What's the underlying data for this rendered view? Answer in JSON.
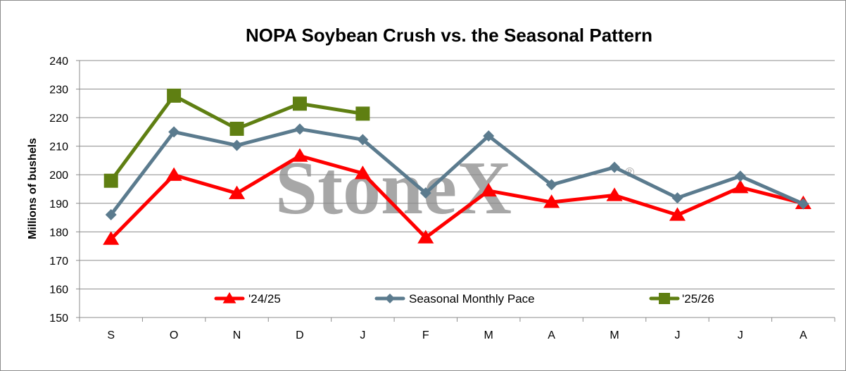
{
  "chart_data": {
    "type": "line",
    "title": "NOPA Soybean Crush vs. the Seasonal Pattern",
    "xlabel": "",
    "ylabel": "Millions of  bushels",
    "ylim": [
      150,
      240
    ],
    "ytick_step": 10,
    "categories": [
      "S",
      "O",
      "N",
      "D",
      "J",
      "F",
      "M",
      "A",
      "M",
      "J",
      "J",
      "A"
    ],
    "grid": "horizontal major gridlines",
    "legend_position": "bottom, inside plot area",
    "watermark": "StoneX",
    "watermark_mark": "®",
    "series": [
      {
        "name": "'24/25",
        "color": "#ff0000",
        "marker": "triangle",
        "values": [
          177.5,
          199.9,
          193.5,
          206.6,
          200.5,
          178.0,
          194.4,
          190.4,
          192.8,
          185.9,
          195.6,
          190.0
        ]
      },
      {
        "name": "Seasonal Monthly Pace",
        "color": "#5b7b8e",
        "marker": "diamond",
        "values": [
          186.0,
          215.0,
          210.3,
          216.0,
          212.3,
          193.6,
          213.6,
          196.5,
          202.6,
          191.9,
          199.5,
          189.8
        ]
      },
      {
        "name": "'25/26",
        "color": "#5f7f12",
        "marker": "square",
        "values": [
          197.9,
          227.7,
          216.1,
          224.9,
          221.4,
          null,
          null,
          null,
          null,
          null,
          null,
          null
        ]
      }
    ]
  }
}
